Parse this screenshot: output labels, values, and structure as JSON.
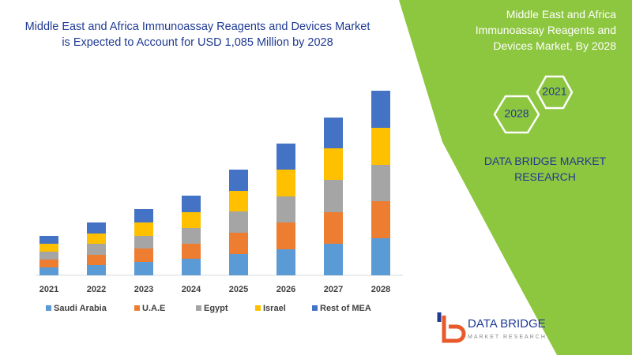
{
  "chart_data": {
    "type": "stacked-bar",
    "title": "Middle East and Africa Immunoassay Reagents and Devices Market is Expected to Account for USD 1,085 Million by 2028",
    "categories": [
      "2021",
      "2022",
      "2023",
      "2024",
      "2025",
      "2026",
      "2027",
      "2028"
    ],
    "series": [
      {
        "name": "Saudi Arabia",
        "color": "#5b9bd5",
        "values": [
          10,
          13,
          17,
          21,
          27,
          33,
          40,
          47
        ]
      },
      {
        "name": "U.A.E",
        "color": "#ed7d31",
        "values": [
          10,
          13,
          17,
          19,
          27,
          34,
          40,
          47
        ]
      },
      {
        "name": "Egypt",
        "color": "#a5a5a5",
        "values": [
          10,
          14,
          16,
          20,
          27,
          33,
          41,
          46
        ]
      },
      {
        "name": "Israel",
        "color": "#ffc000",
        "values": [
          10,
          13,
          17,
          20,
          26,
          34,
          40,
          47
        ]
      },
      {
        "name": "Rest of MEA",
        "color": "#4472c4",
        "values": [
          10,
          14,
          17,
          21,
          27,
          33,
          39,
          47
        ]
      }
    ]
  },
  "panel": {
    "title": "Middle East and Africa Immunoassay Reagents and Devices Market, By 2028",
    "hexagons": [
      "2021",
      "2028"
    ],
    "brand": "DATA BRIDGE MARKET RESEARCH"
  },
  "logo": {
    "name": "DATA BRIDGE",
    "tagline": "MARKET RESEARCH"
  }
}
